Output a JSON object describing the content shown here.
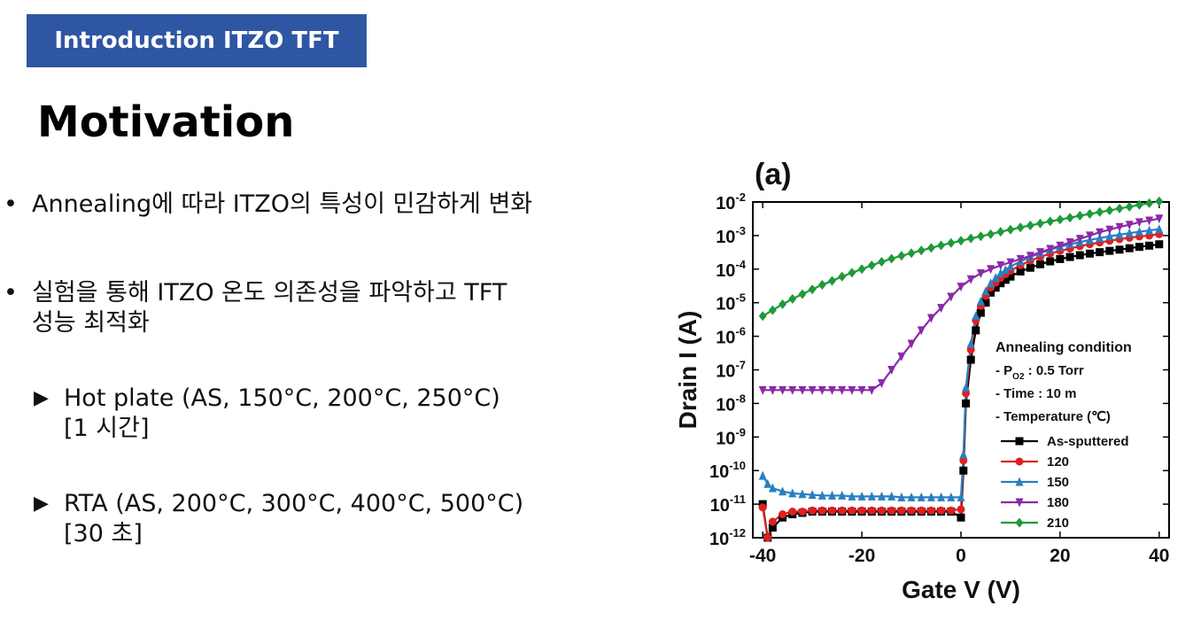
{
  "header": {
    "label": "Introduction ITZO TFT"
  },
  "title": "Motivation",
  "bullets": [
    {
      "lines": [
        "Annealing에 따라 ITZO의 특성이 민감하게 변화"
      ]
    },
    {
      "lines": [
        "실험을 통해 ITZO 온도 의존성을 파악하고 TFT",
        "성능 최적화"
      ]
    }
  ],
  "sub_items": [
    {
      "lines": [
        "Hot plate (AS, 150°C, 200°C, 250°C)",
        "[1 시간]"
      ]
    },
    {
      "lines": [
        "RTA (AS, 200°C, 300°C, 400°C, 500°C)",
        "[30 초]"
      ]
    }
  ],
  "chart_data": {
    "type": "line",
    "panel_label": "(a)",
    "xlabel": "Gate V (V)",
    "ylabel": "Drain I (A)",
    "xlim": [
      -42,
      42
    ],
    "ylim_log10": [
      -12,
      -2
    ],
    "x_ticks": [
      -40,
      -20,
      0,
      20,
      40
    ],
    "y_scale": "log",
    "y_tick_exponents": [
      -12,
      -11,
      -10,
      -9,
      -8,
      -7,
      -6,
      -5,
      -4,
      -3,
      -2
    ],
    "grid": false,
    "legend": {
      "placement": "right-middle",
      "title": "Annealing condition",
      "conditions": [
        {
          "prefix": "- P",
          "sub": "O2",
          "suffix": " : 0.5 Torr"
        },
        {
          "prefix": "- Time : 10 m",
          "sub": "",
          "suffix": ""
        },
        {
          "prefix": "- Temperature (℃)",
          "sub": "",
          "suffix": ""
        }
      ]
    },
    "series": [
      {
        "name": "As-sputtered",
        "color": "#000000",
        "marker": "square",
        "x": [
          -40,
          -39,
          -38,
          -36,
          -34,
          -32,
          -30,
          -28,
          -26,
          -24,
          -22,
          -20,
          -18,
          -16,
          -14,
          -12,
          -10,
          -8,
          -6,
          -4,
          -2,
          0,
          0.5,
          1,
          2,
          3,
          4,
          5,
          6,
          7,
          8,
          9,
          10,
          12,
          14,
          16,
          18,
          20,
          22,
          24,
          26,
          28,
          30,
          32,
          34,
          36,
          38,
          40
        ],
        "y": [
          1e-11,
          1e-12,
          2e-12,
          4e-12,
          5e-12,
          5.5e-12,
          6e-12,
          6e-12,
          6e-12,
          6e-12,
          6e-12,
          6e-12,
          6e-12,
          6e-12,
          6e-12,
          6e-12,
          6e-12,
          6e-12,
          6e-12,
          6e-12,
          6e-12,
          4e-12,
          1e-10,
          1e-08,
          2e-07,
          1.5e-06,
          5e-06,
          1e-05,
          2e-05,
          2.8e-05,
          3.8e-05,
          4.8e-05,
          6e-05,
          8.5e-05,
          0.00011,
          0.00014,
          0.00017,
          0.0002,
          0.00023,
          0.00026,
          0.00029,
          0.00032,
          0.00035,
          0.00038,
          0.00042,
          0.00046,
          0.0005,
          0.00055
        ]
      },
      {
        "name": "120",
        "color": "#e02020",
        "marker": "circle",
        "x": [
          -40,
          -39,
          -38,
          -36,
          -34,
          -32,
          -30,
          -28,
          -26,
          -24,
          -22,
          -20,
          -18,
          -16,
          -14,
          -12,
          -10,
          -8,
          -6,
          -4,
          -2,
          0,
          0.5,
          1,
          2,
          3,
          4,
          5,
          6,
          7,
          8,
          9,
          10,
          12,
          14,
          16,
          18,
          20,
          22,
          24,
          26,
          28,
          30,
          32,
          34,
          36,
          38,
          40
        ],
        "y": [
          8e-12,
          1e-12,
          3e-12,
          5e-12,
          6e-12,
          6e-12,
          6.5e-12,
          6.5e-12,
          6.5e-12,
          6.5e-12,
          6.5e-12,
          6.5e-12,
          6.5e-12,
          6.5e-12,
          6.5e-12,
          6.5e-12,
          6.5e-12,
          6.5e-12,
          6.5e-12,
          6.5e-12,
          6.5e-12,
          7e-12,
          2e-10,
          2e-08,
          4e-07,
          3e-06,
          8e-06,
          1.6e-05,
          2.8e-05,
          4e-05,
          5.5e-05,
          7e-05,
          9e-05,
          0.00013,
          0.00018,
          0.00023,
          0.00029,
          0.00035,
          0.00041,
          0.00048,
          0.00055,
          0.00062,
          0.0007,
          0.00078,
          0.00086,
          0.00094,
          0.001,
          0.0011
        ]
      },
      {
        "name": "150",
        "color": "#2a7fc0",
        "marker": "triangle-up",
        "x": [
          -40,
          -39,
          -38,
          -36,
          -34,
          -32,
          -30,
          -28,
          -26,
          -24,
          -22,
          -20,
          -18,
          -16,
          -14,
          -12,
          -10,
          -8,
          -6,
          -4,
          -2,
          0,
          0.5,
          1,
          2,
          3,
          4,
          5,
          6,
          7,
          8,
          9,
          10,
          12,
          14,
          16,
          18,
          20,
          22,
          24,
          26,
          28,
          30,
          32,
          34,
          36,
          38,
          40
        ],
        "y": [
          7e-11,
          4e-11,
          3e-11,
          2.4e-11,
          2.1e-11,
          2e-11,
          1.9e-11,
          1.8e-11,
          1.8e-11,
          1.8e-11,
          1.7e-11,
          1.7e-11,
          1.7e-11,
          1.7e-11,
          1.7e-11,
          1.6e-11,
          1.6e-11,
          1.6e-11,
          1.6e-11,
          1.6e-11,
          1.6e-11,
          1.6e-11,
          3e-10,
          3e-08,
          6e-07,
          4e-06,
          1.1e-05,
          2.2e-05,
          3.8e-05,
          5.5e-05,
          7.5e-05,
          9.5e-05,
          0.00012,
          0.00017,
          0.00023,
          0.0003,
          0.00038,
          0.00046,
          0.00055,
          0.00064,
          0.00074,
          0.00084,
          0.00095,
          0.00106,
          0.00118,
          0.0013,
          0.00142,
          0.00155
        ]
      },
      {
        "name": "180",
        "color": "#8a2aa8",
        "marker": "triangle-down",
        "x": [
          -40,
          -38,
          -36,
          -34,
          -32,
          -30,
          -28,
          -26,
          -24,
          -22,
          -20,
          -18,
          -16,
          -14,
          -12,
          -10,
          -8,
          -6,
          -4,
          -2,
          0,
          2,
          4,
          6,
          8,
          10,
          12,
          14,
          16,
          18,
          20,
          22,
          24,
          26,
          28,
          30,
          32,
          34,
          36,
          38,
          40
        ],
        "y": [
          2.5e-08,
          2.5e-08,
          2.5e-08,
          2.5e-08,
          2.5e-08,
          2.5e-08,
          2.5e-08,
          2.5e-08,
          2.5e-08,
          2.5e-08,
          2.5e-08,
          2.5e-08,
          4e-08,
          1e-07,
          2.5e-07,
          6e-07,
          1.5e-06,
          3.5e-06,
          7e-06,
          1.5e-05,
          3e-05,
          5e-05,
          7.5e-05,
          0.0001,
          0.00013,
          0.00016,
          0.0002,
          0.00025,
          0.00032,
          0.0004,
          0.0005,
          0.00063,
          0.0008,
          0.001,
          0.00125,
          0.0015,
          0.0018,
          0.0021,
          0.0025,
          0.0028,
          0.0032
        ]
      },
      {
        "name": "210",
        "color": "#1e9a3a",
        "marker": "diamond",
        "x": [
          -40,
          -38,
          -36,
          -34,
          -32,
          -30,
          -28,
          -26,
          -24,
          -22,
          -20,
          -18,
          -16,
          -14,
          -12,
          -10,
          -8,
          -6,
          -4,
          -2,
          0,
          2,
          4,
          6,
          8,
          10,
          12,
          14,
          16,
          18,
          20,
          22,
          24,
          26,
          28,
          30,
          32,
          34,
          36,
          38,
          40
        ],
        "y": [
          4e-06,
          6e-06,
          9e-06,
          1.3e-05,
          1.8e-05,
          2.5e-05,
          3.4e-05,
          4.5e-05,
          6e-05,
          7.8e-05,
          0.0001,
          0.00013,
          0.000165,
          0.000205,
          0.00025,
          0.0003,
          0.00036,
          0.00043,
          0.00051,
          0.0006,
          0.0007,
          0.00082,
          0.00095,
          0.0011,
          0.0013,
          0.0015,
          0.00175,
          0.002,
          0.0023,
          0.00265,
          0.003,
          0.0034,
          0.0039,
          0.0044,
          0.005,
          0.0056,
          0.0064,
          0.0072,
          0.0082,
          0.0092,
          0.0105
        ]
      }
    ]
  }
}
